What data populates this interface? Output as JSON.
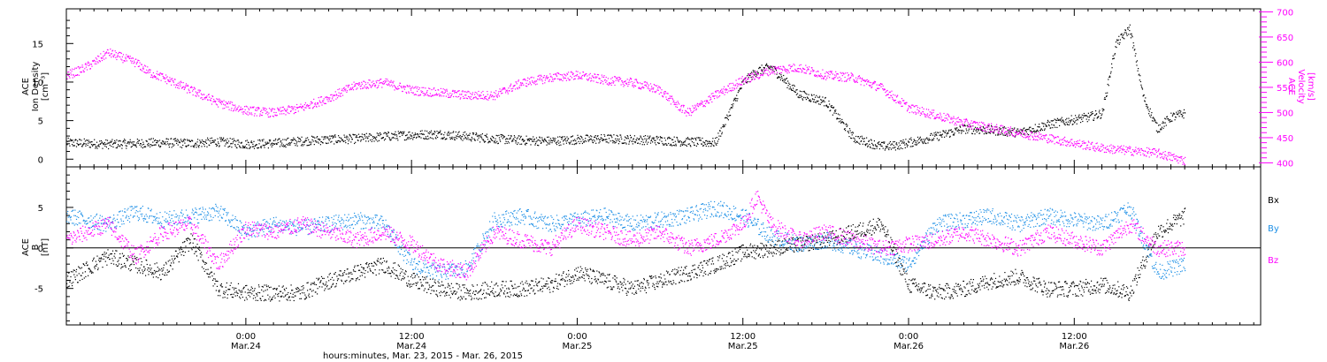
{
  "colors": {
    "black": "#000000",
    "magenta": "#ff00ff",
    "blue": "#1e90e6"
  },
  "chart_data": [
    {
      "type": "scatter",
      "panel": "top",
      "ylabel_left": [
        "ACE",
        "Ion Density",
        "[cm⁻³]"
      ],
      "ylabel_right": [
        "ACE",
        "Velocity",
        "[km/s]"
      ],
      "yticks_left": [
        "0",
        "5",
        "10",
        "15"
      ],
      "ylim_left": [
        -1,
        19.5
      ],
      "yticks_right": [
        "400",
        "450",
        "500",
        "550",
        "600",
        "650",
        "700"
      ],
      "ylim_right": [
        392,
        706
      ],
      "x_hours_range": [
        -13,
        73.5
      ],
      "series": [
        {
          "name": "Ion Density",
          "axis": "left",
          "color": "black",
          "x": [
            -13,
            -10,
            -8,
            -6,
            -4,
            -2,
            0,
            2,
            4,
            6,
            8,
            10,
            12,
            14,
            16,
            18,
            20,
            22,
            24,
            26,
            28,
            30,
            32,
            34,
            36,
            37,
            38,
            40,
            42,
            44,
            46,
            47,
            48,
            50,
            52,
            54,
            56,
            58,
            60,
            61,
            62,
            63,
            64,
            65,
            66,
            67,
            68
          ],
          "y": [
            2.2,
            2.0,
            2.1,
            2.2,
            2.1,
            2.3,
            2.0,
            2.1,
            2.4,
            2.6,
            2.7,
            3.0,
            3.2,
            3.3,
            3.0,
            2.7,
            2.5,
            2.4,
            2.6,
            2.7,
            2.6,
            2.5,
            2.3,
            2.2,
            10.0,
            11.5,
            12.0,
            8.5,
            7.5,
            2.8,
            1.7,
            1.8,
            2.2,
            3.0,
            4.0,
            3.8,
            3.5,
            4.5,
            5.2,
            5.5,
            6.0,
            15.0,
            17.0,
            8.0,
            4.0,
            5.5,
            6.0
          ]
        },
        {
          "name": "Velocity",
          "axis": "right",
          "color": "magenta",
          "x": [
            -13,
            -12,
            -11,
            -10,
            -9,
            -8,
            -7,
            -6,
            -4,
            -2,
            0,
            2,
            4,
            6,
            8,
            10,
            12,
            14,
            16,
            18,
            20,
            22,
            24,
            26,
            28,
            30,
            31,
            32,
            34,
            36,
            38,
            40,
            42,
            44,
            46,
            48,
            50,
            52,
            54,
            56,
            58,
            60,
            62,
            64,
            66,
            68
          ],
          "y": [
            575,
            585,
            600,
            620,
            610,
            600,
            580,
            570,
            545,
            520,
            505,
            500,
            510,
            530,
            555,
            560,
            545,
            540,
            535,
            535,
            560,
            570,
            575,
            565,
            560,
            545,
            520,
            500,
            535,
            565,
            585,
            590,
            575,
            570,
            550,
            510,
            495,
            480,
            470,
            460,
            450,
            440,
            430,
            425,
            420,
            405
          ]
        }
      ]
    },
    {
      "type": "scatter",
      "panel": "bottom",
      "ylabel_left": [
        "ACE",
        "B",
        "[nT]"
      ],
      "yticks_left": [
        "-5",
        "0",
        "5"
      ],
      "ylim_left": [
        -9.5,
        10
      ],
      "zero_line": true,
      "x_hours_range": [
        -13,
        73.5
      ],
      "legend_position": "right",
      "series": [
        {
          "name": "Bx",
          "color": "black",
          "x": [
            -13,
            -10,
            -8,
            -6,
            -4,
            -2,
            0,
            2,
            4,
            6,
            8,
            10,
            12,
            14,
            16,
            18,
            20,
            22,
            24,
            26,
            28,
            30,
            32,
            34,
            36,
            38,
            40,
            42,
            44,
            46,
            48,
            50,
            52,
            54,
            56,
            58,
            60,
            62,
            64,
            66,
            68
          ],
          "y": [
            -4.0,
            -1.0,
            -2.0,
            -3.0,
            1.0,
            -5.0,
            -5.5,
            -5.5,
            -5.5,
            -4.0,
            -3.0,
            -2.0,
            -4.0,
            -5.0,
            -5.5,
            -5.0,
            -5.0,
            -4.5,
            -3.0,
            -4.0,
            -5.0,
            -4.0,
            -3.0,
            -2.0,
            -0.5,
            0.0,
            0.5,
            1.0,
            2.0,
            3.0,
            -4.5,
            -5.5,
            -5.0,
            -4.0,
            -3.5,
            -5.0,
            -5.0,
            -4.5,
            -5.5,
            2.0,
            4.0
          ]
        },
        {
          "name": "By",
          "color": "blue",
          "x": [
            -13,
            -10,
            -8,
            -6,
            -4,
            -2,
            0,
            2,
            4,
            6,
            8,
            10,
            12,
            14,
            16,
            18,
            20,
            22,
            24,
            26,
            28,
            30,
            32,
            34,
            36,
            38,
            40,
            42,
            44,
            46,
            48,
            50,
            52,
            54,
            56,
            58,
            60,
            62,
            64,
            66,
            68
          ],
          "y": [
            4.0,
            3.0,
            4.5,
            3.5,
            4.0,
            4.5,
            2.0,
            3.0,
            2.5,
            3.0,
            3.5,
            3.0,
            -2.0,
            -3.0,
            -2.5,
            3.5,
            4.0,
            3.0,
            3.5,
            4.0,
            3.0,
            3.5,
            4.0,
            5.0,
            4.0,
            1.5,
            0.5,
            1.0,
            0.0,
            -1.0,
            -2.0,
            3.0,
            3.5,
            4.0,
            3.0,
            4.0,
            3.5,
            3.0,
            5.0,
            -3.0,
            -2.0
          ]
        },
        {
          "name": "Bz",
          "color": "magenta",
          "x": [
            -13,
            -10,
            -8,
            -6,
            -4,
            -2,
            0,
            2,
            4,
            6,
            8,
            10,
            12,
            14,
            16,
            18,
            20,
            22,
            24,
            26,
            28,
            30,
            32,
            34,
            36,
            37,
            38,
            40,
            42,
            44,
            46,
            48,
            50,
            52,
            54,
            56,
            58,
            60,
            62,
            64,
            66,
            68
          ],
          "y": [
            1.0,
            3.0,
            -1.0,
            2.0,
            3.0,
            -2.0,
            2.5,
            2.0,
            3.0,
            2.0,
            1.0,
            2.0,
            0.5,
            -2.0,
            -3.0,
            2.0,
            1.0,
            0.0,
            3.0,
            2.0,
            1.0,
            2.0,
            0.0,
            1.0,
            3.0,
            6.5,
            3.0,
            1.0,
            2.0,
            1.0,
            0.0,
            0.5,
            1.0,
            2.0,
            1.0,
            0.0,
            2.0,
            1.0,
            0.0,
            3.0,
            0.0,
            0.0
          ]
        }
      ],
      "legend": [
        "Bx",
        "By",
        "Bz"
      ]
    }
  ],
  "x_axis": {
    "tick_hours": [
      0,
      12,
      24,
      36,
      48,
      60
    ],
    "tick_labels_time": [
      "0:00",
      "12:00",
      "0:00",
      "12:00",
      "0:00",
      "12:00"
    ],
    "tick_labels_date": [
      "Mar.24",
      "Mar.24",
      "Mar.25",
      "Mar.25",
      "Mar.26",
      "Mar.26"
    ],
    "minor_step_hours": 1,
    "xlabel": "hours:minutes, Mar. 23, 2015 - Mar. 26, 2015"
  }
}
